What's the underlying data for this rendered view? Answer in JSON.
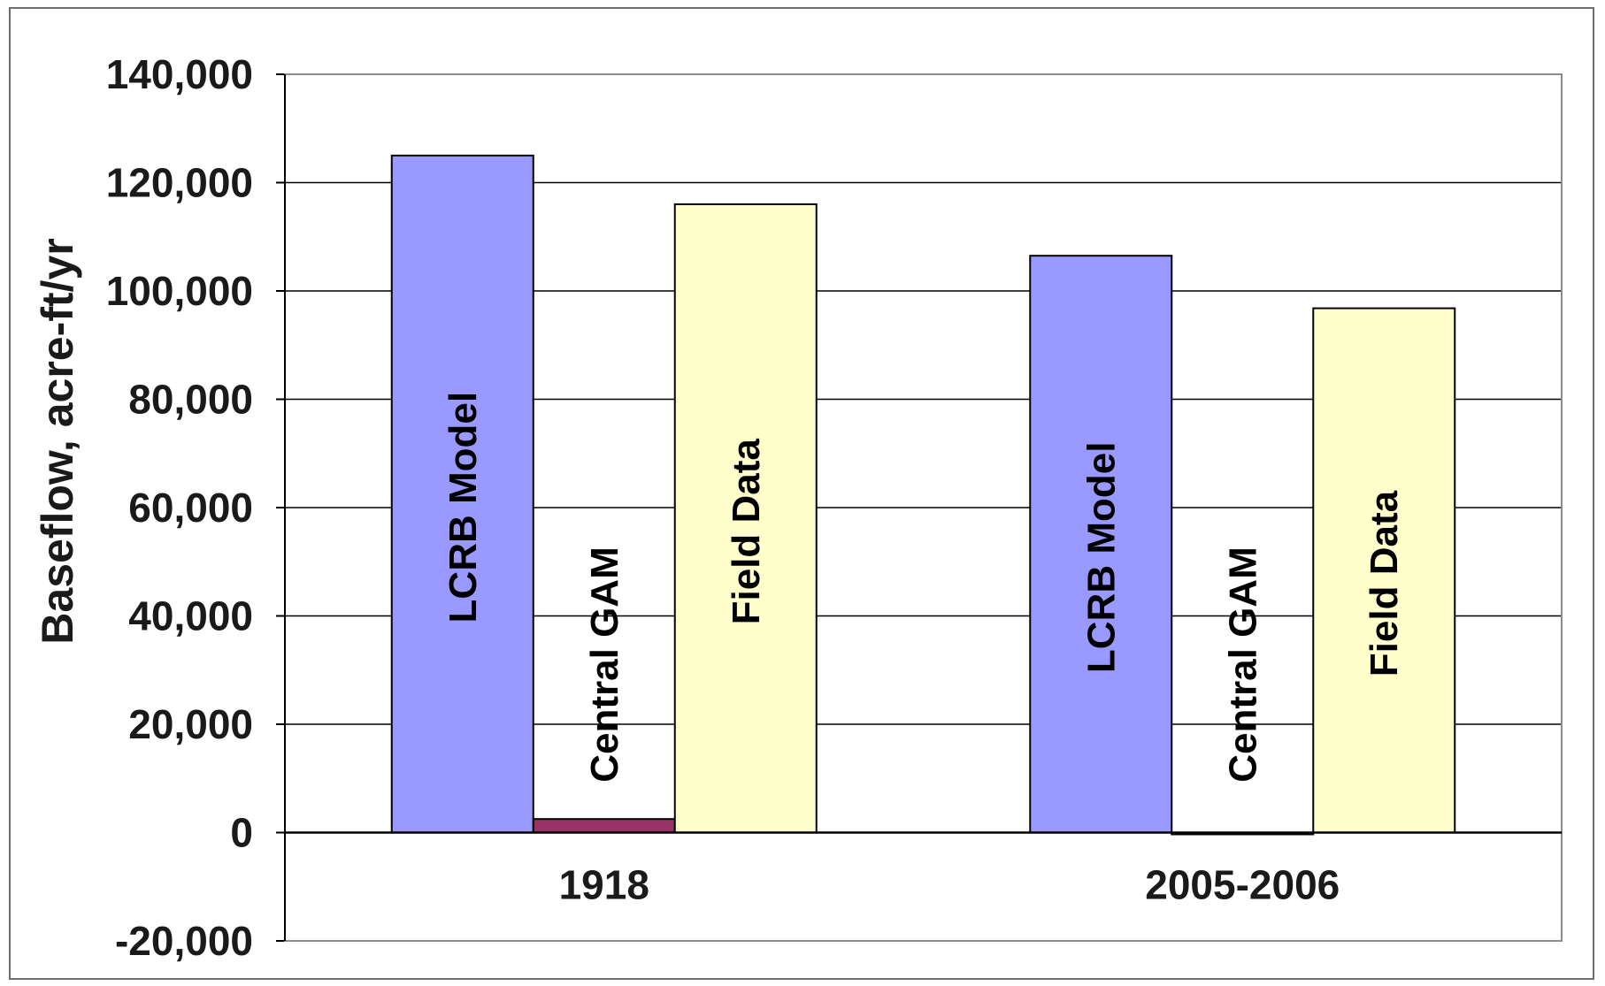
{
  "chart_data": {
    "type": "bar",
    "categories": [
      "1918",
      "2005-2006"
    ],
    "series": [
      {
        "name": "LCRB Model",
        "values": [
          125000,
          106500
        ],
        "color": "#9999ff"
      },
      {
        "name": "Central GAM",
        "values": [
          2500,
          -300
        ],
        "color": "#993366"
      },
      {
        "name": "Field Data",
        "values": [
          116000,
          96800
        ],
        "color": "#ffffcc"
      }
    ],
    "ylabel": "Baseflow, acre-ft/yr",
    "xlabel": "",
    "ylim": [
      -20000,
      140000
    ],
    "yticks": [
      -20000,
      0,
      20000,
      40000,
      60000,
      80000,
      100000,
      120000,
      140000
    ],
    "ytick_labels": [
      "-20,000",
      "0",
      "20,000",
      "40,000",
      "60,000",
      "80,000",
      "100,000",
      "120,000",
      "140,000"
    ],
    "grid": true,
    "legend": "none (series names written inside bars)"
  }
}
